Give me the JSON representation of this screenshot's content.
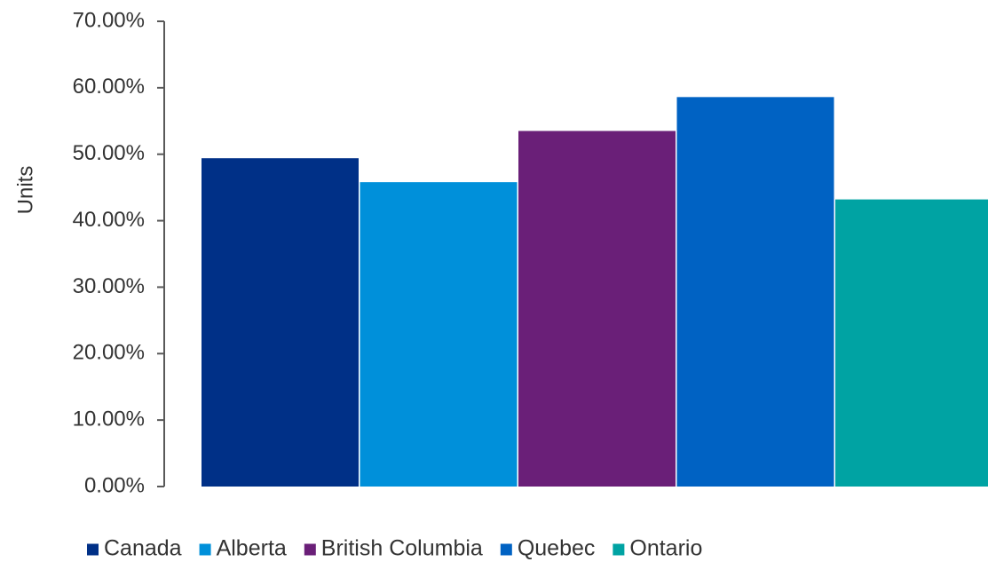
{
  "chart_data": {
    "type": "bar",
    "title": "",
    "xlabel": "",
    "ylabel": "Units",
    "ylim": [
      0,
      70
    ],
    "y_ticks": [
      "0.00%",
      "10.00%",
      "20.00%",
      "30.00%",
      "40.00%",
      "50.00%",
      "60.00%",
      "70.00%"
    ],
    "grid": false,
    "legend_position": "bottom",
    "categories": [
      ""
    ],
    "series": [
      {
        "name": "Canada",
        "values": [
          49.4
        ],
        "color": "#003087"
      },
      {
        "name": "Alberta",
        "values": [
          45.8
        ],
        "color": "#0090DA"
      },
      {
        "name": "British Columbia",
        "values": [
          53.5
        ],
        "color": "#6A1F78"
      },
      {
        "name": "Quebec",
        "values": [
          58.6
        ],
        "color": "#0062C3"
      },
      {
        "name": "Ontario",
        "values": [
          43.2
        ],
        "color": "#00A3A3"
      }
    ]
  }
}
